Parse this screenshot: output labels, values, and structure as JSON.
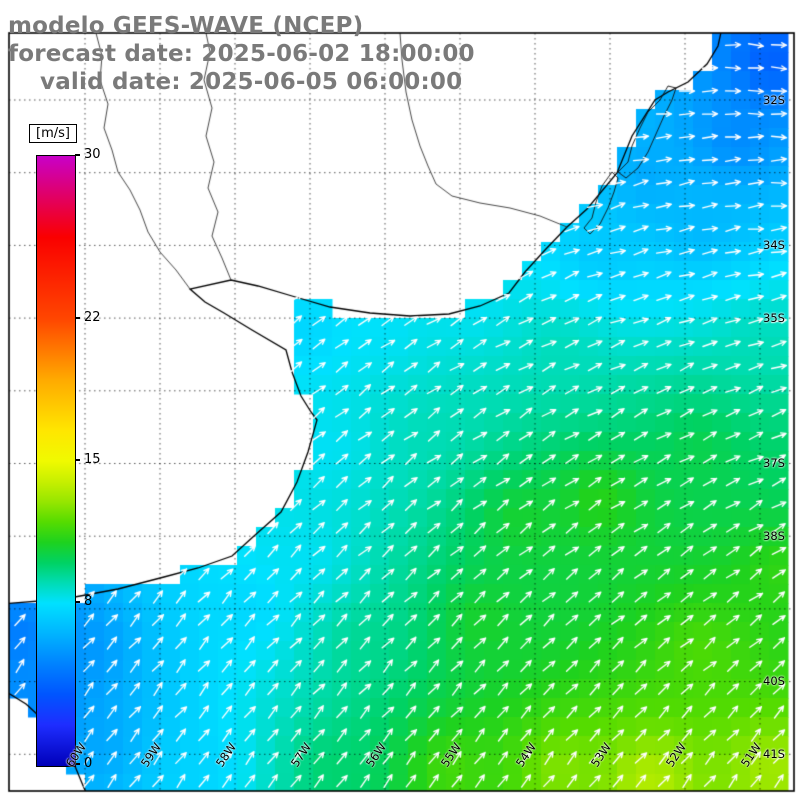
{
  "title": {
    "line1": "modelo GEFS-WAVE (NCEP)",
    "line2": "forecast date: 2025-06-02 18:00:00",
    "line3": "valid date: 2025-06-05 06:00:00",
    "color": "#7a7a7a"
  },
  "colorbar": {
    "unit": "[m/s]",
    "ticks": [
      "30",
      "22",
      "15",
      "8",
      "0"
    ],
    "value_range": [
      0,
      30
    ],
    "stops": [
      [
        30,
        "#c800c8"
      ],
      [
        26,
        "#fa0000"
      ],
      [
        22,
        "#ff4600"
      ],
      [
        19,
        "#ffaa00"
      ],
      [
        16.5,
        "#ffe600"
      ],
      [
        15,
        "#f0fa00"
      ],
      [
        14,
        "#c8f000"
      ],
      [
        13,
        "#96e600"
      ],
      [
        12,
        "#55dc00"
      ],
      [
        11,
        "#1ed21e"
      ],
      [
        10,
        "#00d264"
      ],
      [
        9,
        "#00dcb4"
      ],
      [
        8,
        "#00e1ff"
      ],
      [
        6.5,
        "#00b4ff"
      ],
      [
        5,
        "#0082ff"
      ],
      [
        3.5,
        "#0055ff"
      ],
      [
        2,
        "#1e2dff"
      ],
      [
        0,
        "#0000b9"
      ]
    ]
  },
  "axes": {
    "lat_labels": [
      "32S",
      "34S",
      "35S",
      "37S",
      "38S",
      "40S",
      "41S"
    ],
    "lon_labels": [
      "60W",
      "59W",
      "58W",
      "57W",
      "56W",
      "55W",
      "54W",
      "53W",
      "52W",
      "51W"
    ]
  },
  "map": {
    "arrow_color": "#ffffff",
    "land_color": "#ffffff",
    "coast_color": "#000000",
    "grid_style": "dashed"
  }
}
